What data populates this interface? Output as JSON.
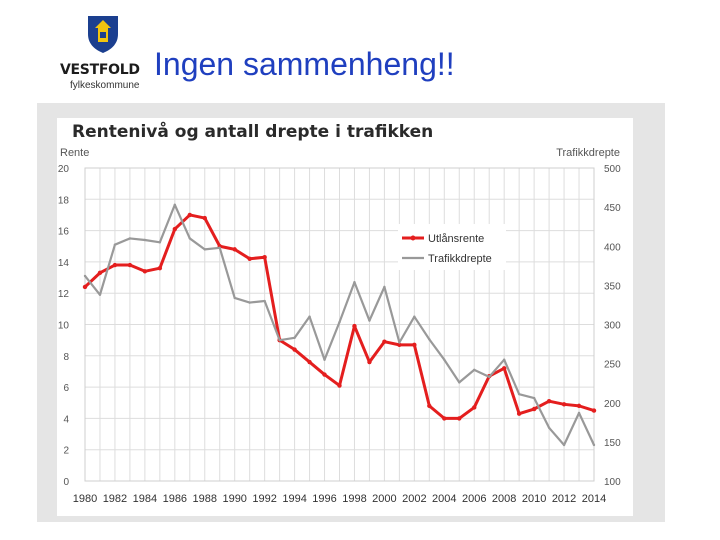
{
  "header": {
    "logo_name": "VESTFOLD",
    "logo_sub": "fylkeskommune",
    "title": "Ingen sammenheng!!"
  },
  "colors": {
    "title": "#1f3fbf",
    "rate_series": "#e41e1e",
    "deaths_series": "#999999",
    "grid": "#dddddd",
    "logo_shield": "#1b3f8f",
    "logo_lion": "#f1c40f"
  },
  "chart_data": {
    "type": "line",
    "title": "Rentenivå og antall drepte i trafikken",
    "ylabel": "Rente",
    "y2label": "Trafikkdrepte",
    "ylim": [
      0,
      20
    ],
    "y2lim": [
      100,
      500
    ],
    "xlim": [
      1980,
      2014
    ],
    "yticks": [
      "0",
      "2",
      "4",
      "6",
      "8",
      "10",
      "12",
      "14",
      "16",
      "18",
      "20"
    ],
    "y2ticks": [
      "100",
      "150",
      "200",
      "250",
      "300",
      "350",
      "400",
      "450",
      "500"
    ],
    "xticks": [
      "1980",
      "1982",
      "1984",
      "1986",
      "1988",
      "1990",
      "1992",
      "1994",
      "1996",
      "1998",
      "2000",
      "2002",
      "2004",
      "2006",
      "2008",
      "2010",
      "2012",
      "2014"
    ],
    "legend_position": "center-right",
    "series": [
      {
        "name": "Utlånsrente",
        "axis": "left",
        "x": [
          1980,
          1981,
          1982,
          1983,
          1984,
          1985,
          1986,
          1987,
          1988,
          1989,
          1990,
          1991,
          1992,
          1993,
          1994,
          1995,
          1996,
          1997,
          1998,
          1999,
          2000,
          2001,
          2002,
          2003,
          2004,
          2005,
          2006,
          2007,
          2008,
          2009,
          2010,
          2011,
          2012,
          2013,
          2014
        ],
        "values": [
          12.4,
          13.3,
          13.8,
          13.8,
          13.4,
          13.6,
          16.1,
          17.0,
          16.8,
          15.0,
          14.8,
          14.2,
          14.3,
          9.0,
          8.4,
          7.6,
          6.8,
          6.1,
          9.9,
          7.6,
          8.9,
          8.7,
          8.7,
          4.8,
          4.0,
          4.0,
          4.7,
          6.7,
          7.2,
          4.3,
          4.6,
          5.1,
          4.9,
          4.8,
          4.5
        ]
      },
      {
        "name": "Trafikkdrepte",
        "axis": "right",
        "x": [
          1980,
          1981,
          1982,
          1983,
          1984,
          1985,
          1986,
          1987,
          1988,
          1989,
          1990,
          1991,
          1992,
          1993,
          1994,
          1995,
          1996,
          1997,
          1998,
          1999,
          2000,
          2001,
          2002,
          2003,
          2004,
          2005,
          2006,
          2007,
          2008,
          2009,
          2010,
          2011,
          2012,
          2013,
          2014
        ],
        "values": [
          362,
          338,
          402,
          410,
          408,
          405,
          453,
          410,
          396,
          398,
          334,
          328,
          330,
          280,
          283,
          310,
          255,
          303,
          354,
          305,
          348,
          277,
          310,
          281,
          255,
          226,
          242,
          233,
          255,
          211,
          206,
          168,
          146,
          187,
          146
        ]
      }
    ]
  }
}
